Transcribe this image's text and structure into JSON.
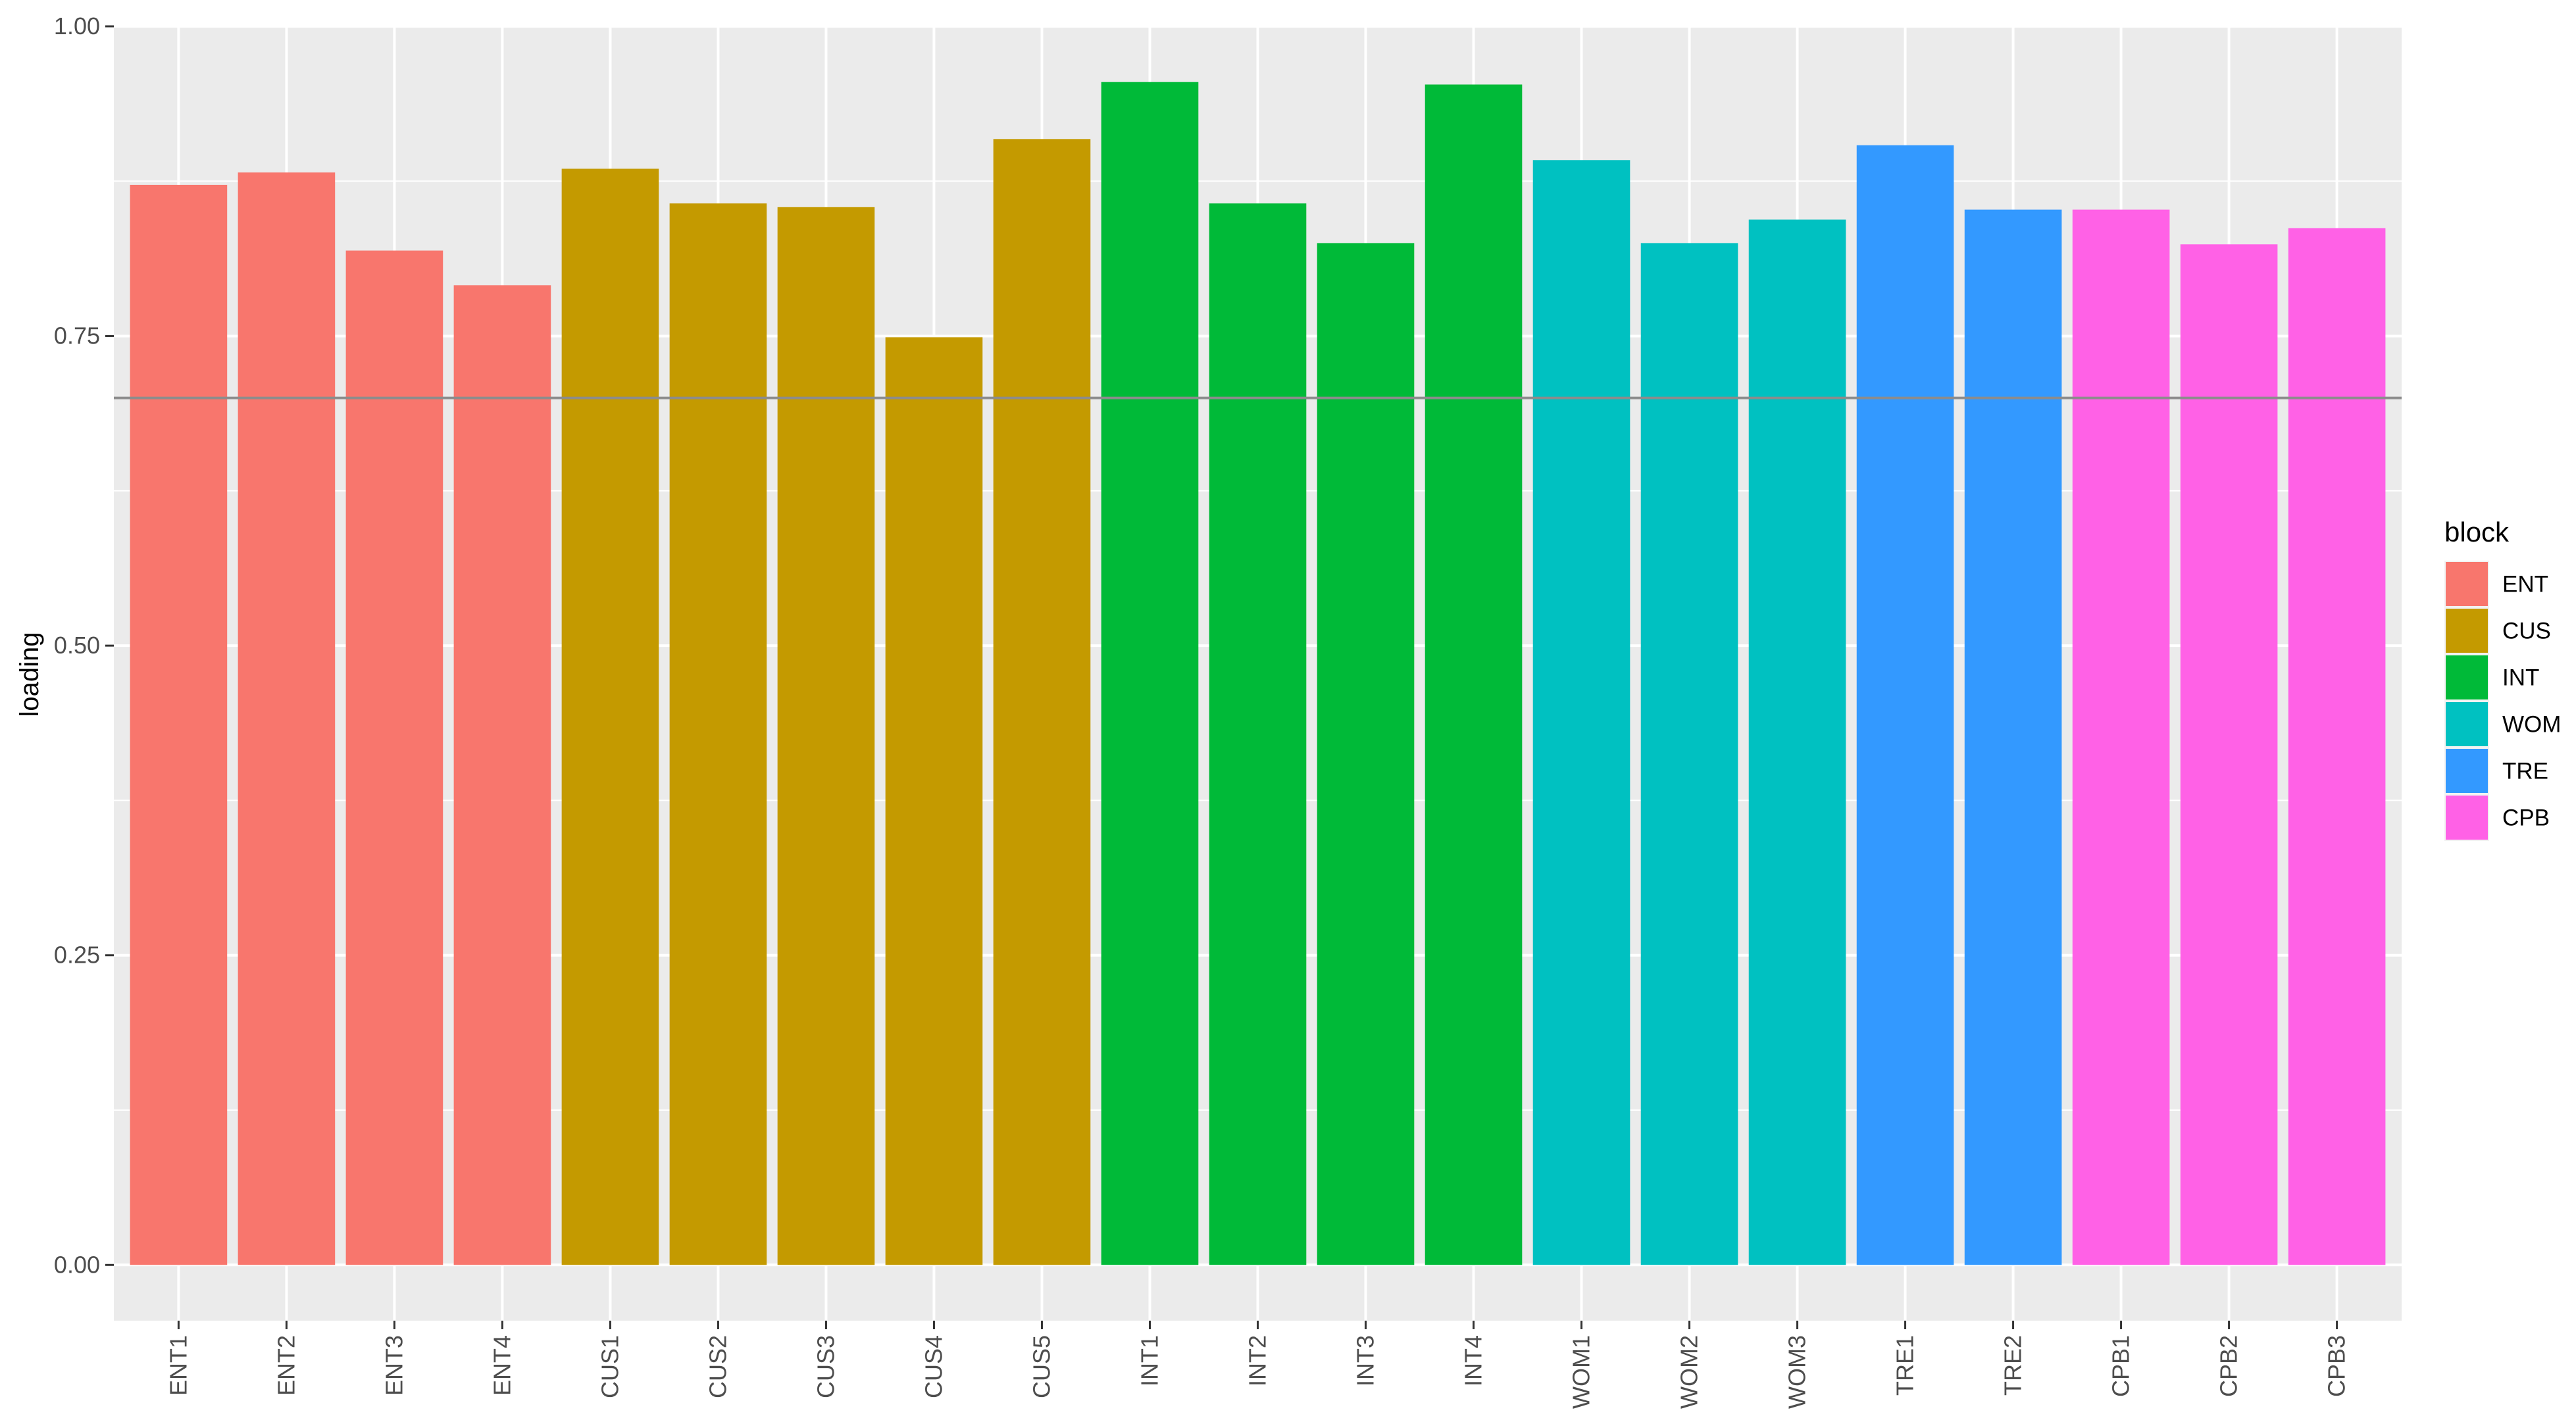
{
  "chart_data": {
    "type": "bar",
    "title": "",
    "xlabel": "",
    "ylabel": "loading",
    "ylim": [
      -0.045,
      1.0
    ],
    "yticks": [
      0.0,
      0.25,
      0.5,
      0.75,
      1.0
    ],
    "ytick_labels": [
      "0.00",
      "0.25",
      "0.50",
      "0.75",
      "1.00"
    ],
    "reference_line": 0.7,
    "grid": true,
    "legend_position": "right",
    "legend_title": "block",
    "categories": [
      "ENT1",
      "ENT2",
      "ENT3",
      "ENT4",
      "CUS1",
      "CUS2",
      "CUS3",
      "CUS4",
      "CUS5",
      "INT1",
      "INT2",
      "INT3",
      "INT4",
      "WOM1",
      "WOM2",
      "WOM3",
      "TRE1",
      "TRE2",
      "CPB1",
      "CPB2",
      "CPB3"
    ],
    "values": [
      0.872,
      0.882,
      0.819,
      0.791,
      0.885,
      0.857,
      0.854,
      0.749,
      0.909,
      0.955,
      0.857,
      0.825,
      0.953,
      0.892,
      0.825,
      0.844,
      0.904,
      0.852,
      0.852,
      0.824,
      0.837
    ],
    "groups": [
      "ENT",
      "ENT",
      "ENT",
      "ENT",
      "CUS",
      "CUS",
      "CUS",
      "CUS",
      "CUS",
      "INT",
      "INT",
      "INT",
      "INT",
      "WOM",
      "WOM",
      "WOM",
      "TRE",
      "TRE",
      "CPB",
      "CPB",
      "CPB"
    ],
    "legend": [
      {
        "name": "ENT",
        "color": "#F8766D"
      },
      {
        "name": "CUS",
        "color": "#C49A00"
      },
      {
        "name": "INT",
        "color": "#00BA38"
      },
      {
        "name": "WOM",
        "color": "#00C1C1"
      },
      {
        "name": "TRE",
        "color": "#3399FF"
      },
      {
        "name": "CPB",
        "color": "#FF61E6"
      }
    ],
    "colors": {
      "panel_background": "#EBEBEB",
      "grid_major": "#FFFFFF",
      "reference_line": "#8C8C8C"
    }
  }
}
